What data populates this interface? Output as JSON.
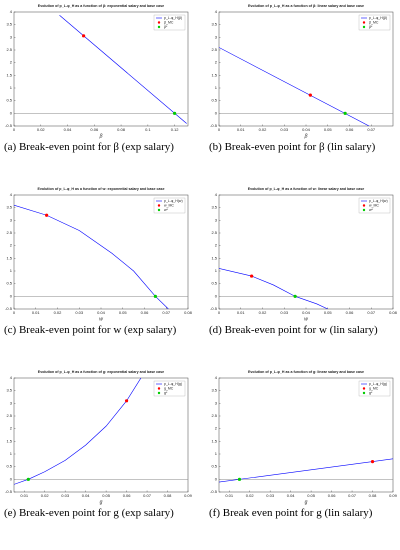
{
  "chart_data": [
    {
      "type": "line",
      "title": "Evolution of p_L-φ_H as a function of β: exponential salary and base case",
      "x_label": "β",
      "caption": "(a) Break-even point for β (exp salary)",
      "xlim": [
        0,
        0.13
      ],
      "xticks": [
        0,
        0.02,
        0.04,
        0.06,
        0.08,
        0.1,
        0.12
      ],
      "ylim": [
        -0.5,
        4
      ],
      "yticks": [
        -0.5,
        0,
        0.5,
        1,
        1.5,
        2,
        2.5,
        3,
        3.5,
        4
      ],
      "reference_line": 0,
      "series": [
        {
          "name": "p_L-φ_H(β)",
          "color": "#0000ff",
          "x": [
            0.034,
            0.129
          ],
          "values": [
            3.87,
            -0.4
          ]
        },
        {
          "name": "β_MC",
          "color": "#ff0000",
          "x": [
            0.052
          ],
          "values": [
            3.06
          ]
        },
        {
          "name": "β*",
          "color": "#00cc00",
          "x": [
            0.12
          ],
          "values": [
            0
          ]
        }
      ]
    },
    {
      "type": "line",
      "title": "Evolution of p_L-φ_H as a function of β: linear salary and base case",
      "x_label": "β",
      "caption": "(b) Break-even point for β (lin salary)",
      "xlim": [
        0,
        0.08
      ],
      "xticks": [
        0,
        0.01,
        0.02,
        0.03,
        0.04,
        0.05,
        0.06,
        0.07
      ],
      "ylim": [
        -0.5,
        4
      ],
      "yticks": [
        -0.5,
        0,
        0.5,
        1,
        1.5,
        2,
        2.5,
        3,
        3.5,
        4
      ],
      "reference_line": 0,
      "series": [
        {
          "name": "p_L-φ_H(β)",
          "color": "#0000ff",
          "x": [
            0,
            0.069
          ],
          "values": [
            2.6,
            -0.5
          ]
        },
        {
          "name": "β_MC",
          "color": "#ff0000",
          "x": [
            0.042
          ],
          "values": [
            0.72
          ]
        },
        {
          "name": "β*",
          "color": "#00cc00",
          "x": [
            0.058
          ],
          "values": [
            0
          ]
        }
      ]
    },
    {
      "type": "line",
      "title": "Evolution of p_L-φ_H as a function of w: exponential salary and base case",
      "x_label": "w",
      "caption": "(c) Break-even point for w (exp salary)",
      "xlim": [
        0,
        0.08
      ],
      "xticks": [
        0,
        0.01,
        0.02,
        0.03,
        0.04,
        0.05,
        0.06,
        0.07,
        0.08
      ],
      "ylim": [
        -0.5,
        4
      ],
      "yticks": [
        -0.5,
        0,
        0.5,
        1,
        1.5,
        2,
        2.5,
        3,
        3.5,
        4
      ],
      "reference_line": 0,
      "series": [
        {
          "name": "p_L-φ_H(w)",
          "color": "#0000ff",
          "x": [
            0,
            0.015,
            0.03,
            0.045,
            0.055,
            0.065,
            0.071
          ],
          "values": [
            3.6,
            3.2,
            2.6,
            1.7,
            1,
            0,
            -0.5
          ]
        },
        {
          "name": "w_MC",
          "color": "#ff0000",
          "x": [
            0.015
          ],
          "values": [
            3.2
          ]
        },
        {
          "name": "w*",
          "color": "#00cc00",
          "x": [
            0.065
          ],
          "values": [
            0
          ]
        }
      ]
    },
    {
      "type": "line",
      "title": "Evolution of p_L-φ_H as a function of w: linear salary and base case",
      "x_label": "w",
      "caption": "(d) Break-even point for w (lin salary)",
      "xlim": [
        0,
        0.08
      ],
      "xticks": [
        0,
        0.01,
        0.02,
        0.03,
        0.04,
        0.05,
        0.06,
        0.07,
        0.08
      ],
      "ylim": [
        -0.5,
        4
      ],
      "yticks": [
        -0.5,
        0,
        0.5,
        1,
        1.5,
        2,
        2.5,
        3,
        3.5,
        4
      ],
      "reference_line": 0,
      "series": [
        {
          "name": "p_L-φ_H(w)",
          "color": "#0000ff",
          "x": [
            0,
            0.015,
            0.025,
            0.035,
            0.045,
            0.05
          ],
          "values": [
            1.1,
            0.8,
            0.45,
            0,
            -0.3,
            -0.5
          ]
        },
        {
          "name": "w_MC",
          "color": "#ff0000",
          "x": [
            0.015
          ],
          "values": [
            0.8
          ]
        },
        {
          "name": "w*",
          "color": "#00cc00",
          "x": [
            0.035
          ],
          "values": [
            0
          ]
        }
      ]
    },
    {
      "type": "line",
      "title": "Evolution of p_L-φ_H as a function of g: exponential salary and base case",
      "x_label": "g",
      "caption": "(e) Break-even point for g (exp salary)",
      "xlim": [
        0.005,
        0.09
      ],
      "xticks": [
        0.01,
        0.02,
        0.03,
        0.04,
        0.05,
        0.06,
        0.07,
        0.08,
        0.09
      ],
      "ylim": [
        -0.5,
        4
      ],
      "yticks": [
        -0.5,
        0,
        0.5,
        1,
        1.5,
        2,
        2.5,
        3,
        3.5,
        4
      ],
      "reference_line": 0,
      "series": [
        {
          "name": "p_L-φ_H(g)",
          "color": "#0000ff",
          "x": [
            0.005,
            0.012,
            0.02,
            0.03,
            0.04,
            0.05,
            0.06,
            0.067
          ],
          "values": [
            -0.2,
            0,
            0.3,
            0.75,
            1.35,
            2.1,
            3.1,
            4
          ]
        },
        {
          "name": "g_MC",
          "color": "#ff0000",
          "x": [
            0.06
          ],
          "values": [
            3.1
          ]
        },
        {
          "name": "g*",
          "color": "#00cc00",
          "x": [
            0.012
          ],
          "values": [
            0
          ]
        }
      ]
    },
    {
      "type": "line",
      "title": "Evolution of p_L-φ_H as a function of g: linear salary and base case",
      "x_label": "g",
      "caption": "(f) Break even point for g (lin salary)",
      "xlim": [
        0.005,
        0.09
      ],
      "xticks": [
        0.01,
        0.02,
        0.03,
        0.04,
        0.05,
        0.06,
        0.07,
        0.08,
        0.09
      ],
      "ylim": [
        -0.5,
        4
      ],
      "yticks": [
        -0.5,
        0,
        0.5,
        1,
        1.5,
        2,
        2.5,
        3,
        3.5,
        4
      ],
      "reference_line": 0,
      "series": [
        {
          "name": "p_L-φ_H(g)",
          "color": "#0000ff",
          "x": [
            0.005,
            0.09
          ],
          "values": [
            -0.108,
            0.81
          ]
        },
        {
          "name": "g_MC",
          "color": "#ff0000",
          "x": [
            0.08
          ],
          "values": [
            0.7
          ]
        },
        {
          "name": "g*",
          "color": "#00cc00",
          "x": [
            0.015
          ],
          "values": [
            0
          ]
        }
      ]
    }
  ]
}
